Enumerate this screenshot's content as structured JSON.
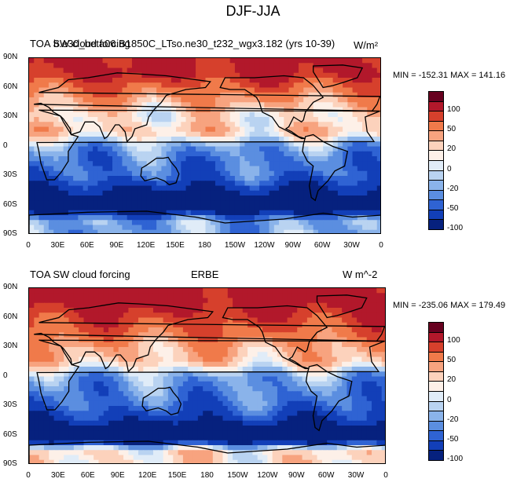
{
  "figure_title": "DJF-JJA",
  "panels": [
    {
      "left_title": "TOA SW cloud forcing",
      "center_title": "b.e30_beta06.B1850C_LTso.ne30_t232_wgx3.182 (yrs 10-39)",
      "right_title": "W/m²",
      "min_max_text": "MIN = -152.31  MAX = 141.16"
    },
    {
      "left_title": "TOA SW cloud forcing",
      "center_title": "ERBE",
      "right_title": "W m^-2",
      "min_max_text": "MIN = -235.06  MAX = 179.49"
    }
  ],
  "lat_labels": [
    "90N",
    "60N",
    "30N",
    "0",
    "30S",
    "60S",
    "90S"
  ],
  "lon_labels": [
    "0",
    "30E",
    "60E",
    "90E",
    "120E",
    "150E",
    "180",
    "150W",
    "120W",
    "90W",
    "60W",
    "30W",
    "0"
  ],
  "colorbar": {
    "labels": [
      "100",
      "50",
      "20",
      "0",
      "-20",
      "-50",
      "-100"
    ],
    "colors": [
      "#67001f",
      "#b2182b",
      "#d6402c",
      "#f07a4a",
      "#f7a37f",
      "#fcd2bc",
      "#fdf0e8",
      "#e0ecf8",
      "#b9d3f1",
      "#8ab3ea",
      "#5b8ee0",
      "#2f63d3",
      "#123fb8",
      "#06217e"
    ]
  },
  "chart_data": [
    {
      "type": "heatmap",
      "title": "TOA SW cloud forcing",
      "subtitle": "b.e30_beta06.B1850C_LTso.ne30_t232_wgx3.182 (yrs 10-39)",
      "units": "W/m²",
      "xlim": [
        0,
        360
      ],
      "ylim": [
        -90,
        90
      ],
      "min": -152.31,
      "max": 141.16,
      "contour_levels": [
        -100,
        -50,
        -20,
        0,
        20,
        50,
        100
      ],
      "zonal_pattern": [
        {
          "lat": 75,
          "value": 110
        },
        {
          "lat": 60,
          "value": 70
        },
        {
          "lat": 45,
          "value": 40
        },
        {
          "lat": 30,
          "value": 15
        },
        {
          "lat": 15,
          "value": 30
        },
        {
          "lat": 0,
          "value": -20
        },
        {
          "lat": -15,
          "value": -35
        },
        {
          "lat": -30,
          "value": -40
        },
        {
          "lat": -45,
          "value": -80
        },
        {
          "lat": -60,
          "value": -130
        },
        {
          "lat": -75,
          "value": -20
        }
      ]
    },
    {
      "type": "heatmap",
      "title": "TOA SW cloud forcing",
      "subtitle": "ERBE",
      "units": "W m^-2",
      "xlim": [
        0,
        360
      ],
      "ylim": [
        -90,
        90
      ],
      "min": -235.06,
      "max": 179.49,
      "contour_levels": [
        -100,
        -50,
        -20,
        0,
        20,
        50,
        100
      ],
      "zonal_pattern": [
        {
          "lat": 75,
          "value": 120
        },
        {
          "lat": 60,
          "value": 90
        },
        {
          "lat": 45,
          "value": 70
        },
        {
          "lat": 30,
          "value": 40
        },
        {
          "lat": 15,
          "value": 30
        },
        {
          "lat": 0,
          "value": -20
        },
        {
          "lat": -15,
          "value": -30
        },
        {
          "lat": -30,
          "value": -40
        },
        {
          "lat": -45,
          "value": -70
        },
        {
          "lat": -60,
          "value": -150
        },
        {
          "lat": -75,
          "value": 20
        }
      ]
    }
  ]
}
